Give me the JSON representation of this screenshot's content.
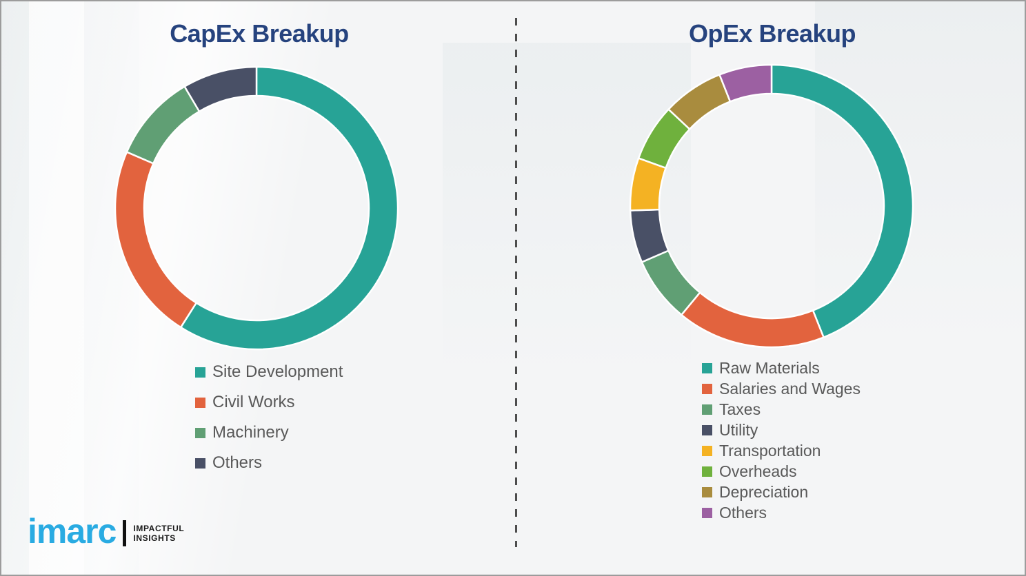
{
  "chart_data": [
    {
      "type": "donut",
      "title": "CapEx Breakup",
      "labels": [
        "Site Development",
        "Civil Works",
        "Machinery",
        "Others"
      ],
      "values": [
        59,
        22.5,
        10,
        8.5
      ],
      "colors": [
        "#27a396",
        "#e2633e",
        "#609f74",
        "#495066"
      ],
      "value_unit": "percent-estimated-from-arc-angles",
      "start_angle_deg": 0,
      "direction": "clockwise",
      "inner_radius_ratio": 0.795,
      "legend_position": "below"
    },
    {
      "type": "donut",
      "title": "OpEx Breakup",
      "labels": [
        "Raw Materials",
        "Salaries and Wages",
        "Taxes",
        "Utility",
        "Transportation",
        "Overheads",
        "Depreciation",
        "Others"
      ],
      "values": [
        44,
        17,
        7.5,
        6,
        6,
        6.5,
        7,
        6
      ],
      "colors": [
        "#27a396",
        "#e2633e",
        "#609f74",
        "#495066",
        "#f4b223",
        "#6fb13d",
        "#a98c3e",
        "#9c60a2"
      ],
      "value_unit": "percent-estimated-from-arc-angles",
      "start_angle_deg": 0,
      "direction": "clockwise",
      "inner_radius_ratio": 0.795,
      "legend_position": "below"
    }
  ],
  "logo": {
    "brand": "imarc",
    "tagline_line1": "IMPACTFUL",
    "tagline_line2": "INSIGHTS",
    "brand_color": "#29abe2"
  },
  "style": {
    "title_color": "#26437e",
    "legend_text_color": "#595959",
    "divider_color": "#4d4d4d",
    "background_color": "#f4f5f6",
    "border_color": "#9c9c9c",
    "segment_gap_color": "#ffffff"
  }
}
